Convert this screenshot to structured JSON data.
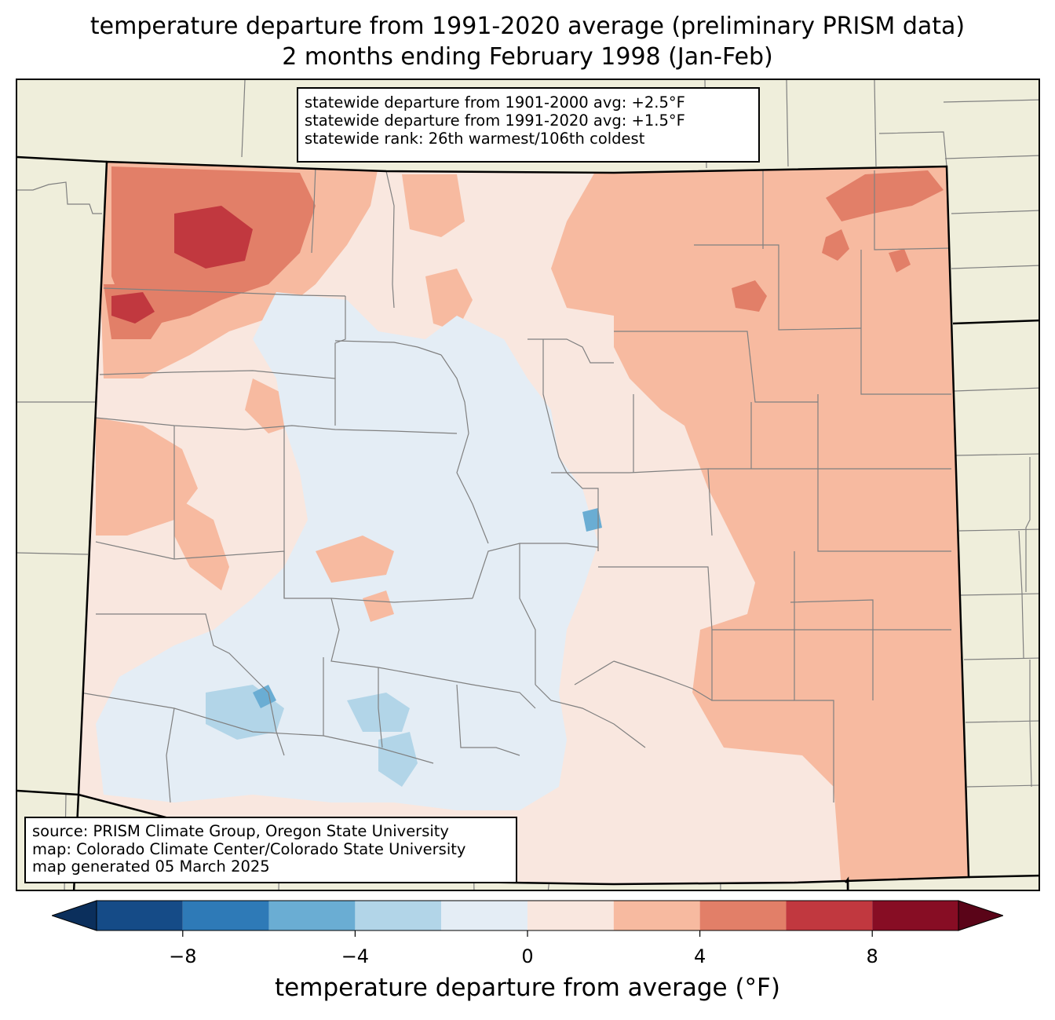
{
  "title": {
    "line1": "temperature departure from 1991-2020 average (preliminary PRISM data)",
    "line2": "2 months ending February 1998 (Jan-Feb)"
  },
  "stats_box": {
    "line1": "statewide departure from 1901-2000 avg: +2.5°F",
    "line2": "statewide departure from 1991-2020 avg: +1.5°F",
    "line3": "statewide rank: 26th warmest/106th coldest"
  },
  "source_box": {
    "line1": "source: PRISM Climate Group, Oregon State University",
    "line2": "map: Colorado Climate Center/Colorado State University",
    "line3": "map generated 05 March 2025"
  },
  "colorbar": {
    "label": "temperature departure from average (°F)",
    "min": -10,
    "max": 10,
    "ticks": [
      {
        "value": -8,
        "label": "−8"
      },
      {
        "value": -4,
        "label": "−4"
      },
      {
        "value": 0,
        "label": "0"
      },
      {
        "value": 4,
        "label": "4"
      },
      {
        "value": 8,
        "label": "8"
      }
    ],
    "bins": [
      {
        "from": -10,
        "to": -8,
        "color": "#154b87"
      },
      {
        "from": -8,
        "to": -6,
        "color": "#2e7ab7"
      },
      {
        "from": -6,
        "to": -4,
        "color": "#6aadd3"
      },
      {
        "from": -4,
        "to": -2,
        "color": "#b2d5e8"
      },
      {
        "from": -2,
        "to": 0,
        "color": "#e4edf5"
      },
      {
        "from": 0,
        "to": 2,
        "color": "#f9e7df"
      },
      {
        "from": 2,
        "to": 4,
        "color": "#f7baa0"
      },
      {
        "from": 4,
        "to": 6,
        "color": "#e27f68"
      },
      {
        "from": 6,
        "to": 8,
        "color": "#c1383f"
      },
      {
        "from": 8,
        "to": 10,
        "color": "#870d24"
      }
    ],
    "under_color": "#0b2f5c",
    "over_color": "#5a0418"
  },
  "map_colors": {
    "background_land": "#efeedb",
    "boundary": "#808080",
    "state_border": "#000000"
  }
}
